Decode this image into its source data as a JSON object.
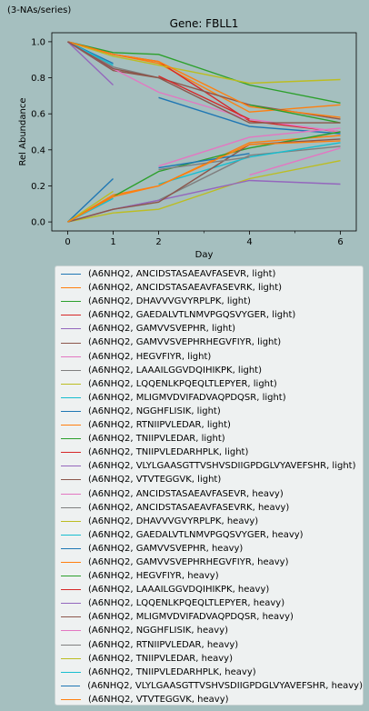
{
  "header_note": "(3-NAs/series)",
  "chart_data": {
    "type": "line",
    "title": "Gene: FBLL1",
    "xlabel": "Day",
    "ylabel": "Rel Abundance",
    "xlim": [
      -0.35,
      6.35
    ],
    "ylim": [
      -0.05,
      1.05
    ],
    "xticks": [
      0,
      1,
      2,
      4,
      6
    ],
    "yticks": [
      0.0,
      0.2,
      0.4,
      0.6,
      0.8,
      1.0
    ],
    "grid": false,
    "legend_position": "below",
    "series": [
      {
        "name": "(A6NHQ2, ANCIDSTASAEAVFASEVR, light)",
        "color": "#1f77b4",
        "points": [
          [
            0,
            1.0
          ],
          [
            1,
            0.88
          ]
        ]
      },
      {
        "name": "(A6NHQ2, ANCIDSTASAEAVFASEVRK, light)",
        "color": "#ff7f0e",
        "points": [
          [
            0,
            1.0
          ],
          [
            1,
            0.93
          ],
          [
            2,
            0.88
          ],
          [
            4,
            0.61
          ],
          [
            6,
            0.65
          ]
        ]
      },
      {
        "name": "(A6NHQ2, DHAVVVGVYRPLPK, light)",
        "color": "#2ca02c",
        "points": [
          [
            0,
            1.0
          ],
          [
            1,
            0.94
          ],
          [
            2,
            0.93
          ],
          [
            4,
            0.76
          ],
          [
            6,
            0.66
          ]
        ]
      },
      {
        "name": "(A6NHQ2, GAEDALVTLNMVPGQSVYGER, light)",
        "color": "#d62728",
        "points": [
          [
            0,
            1.0
          ],
          [
            1,
            0.93
          ],
          [
            2,
            0.89
          ],
          [
            4,
            0.56
          ],
          [
            6,
            0.5
          ]
        ]
      },
      {
        "name": "(A6NHQ2, GAMVVSVEPHR, light)",
        "color": "#9467bd",
        "points": [
          [
            0,
            1.0
          ],
          [
            1,
            0.76
          ]
        ]
      },
      {
        "name": "(A6NHQ2, GAMVVSVEPHRHEGVFIYR, light)",
        "color": "#8c564b",
        "points": [
          [
            0,
            1.0
          ],
          [
            1,
            0.84
          ],
          [
            2,
            0.8
          ],
          [
            4,
            0.65
          ],
          [
            6,
            0.57
          ]
        ]
      },
      {
        "name": "(A6NHQ2, HEGVFIYR, light)",
        "color": "#e377c2",
        "points": [
          [
            0,
            1.0
          ],
          [
            1,
            0.85
          ],
          [
            2,
            0.72
          ],
          [
            4,
            0.57
          ],
          [
            6,
            0.5
          ]
        ]
      },
      {
        "name": "(A6NHQ2, LAAAILGGVDQIHIKPK, light)",
        "color": "#7f7f7f",
        "points": [
          [
            0,
            1.0
          ],
          [
            1,
            0.86
          ],
          [
            2,
            0.8
          ]
        ]
      },
      {
        "name": "(A6NHQ2, LQQENLKPQEQLTLEPYER, light)",
        "color": "#bcbd22",
        "points": [
          [
            0,
            1.0
          ],
          [
            1,
            0.92
          ],
          [
            2,
            0.87
          ],
          [
            4,
            0.77
          ],
          [
            6,
            0.79
          ]
        ]
      },
      {
        "name": "(A6NHQ2, MLIGMVDVIFADVAQPDQSR, light)",
        "color": "#17becf",
        "points": [
          [
            0,
            1.0
          ],
          [
            1,
            0.87
          ]
        ]
      },
      {
        "name": "(A6NHQ2, NGGHFLISIK, light)",
        "color": "#1f77b4",
        "points": [
          [
            2,
            0.69
          ],
          [
            4,
            0.53
          ],
          [
            6,
            0.49
          ]
        ]
      },
      {
        "name": "(A6NHQ2, RTNIIPVLEDAR, light)",
        "color": "#ff7f0e",
        "points": [
          [
            0,
            1.0
          ],
          [
            1,
            0.93
          ],
          [
            2,
            0.89
          ],
          [
            4,
            0.64
          ],
          [
            6,
            0.58
          ]
        ]
      },
      {
        "name": "(A6NHQ2, TNIIPVLEDAR, light)",
        "color": "#2ca02c",
        "points": [
          [
            4,
            0.65
          ],
          [
            6,
            0.55
          ]
        ]
      },
      {
        "name": "(A6NHQ2, TNIIPVLEDARHPLK, light)",
        "color": "#d62728",
        "points": [
          [
            2,
            0.81
          ],
          [
            4,
            0.57
          ]
        ]
      },
      {
        "name": "(A6NHQ2, VLYLGAASGTTVSHVSDIIGPDGLVYAVEFSHR, light)",
        "color": "#9467bd",
        "points": [
          [
            0,
            1.0
          ],
          [
            1,
            0.85
          ]
        ]
      },
      {
        "name": "(A6NHQ2, VTVTEGGVK, light)",
        "color": "#8c564b",
        "points": [
          [
            0,
            1.0
          ],
          [
            1,
            0.85
          ],
          [
            2,
            0.8
          ],
          [
            4,
            0.55
          ],
          [
            6,
            0.55
          ]
        ]
      },
      {
        "name": "(A6NHQ2, ANCIDSTASAEAVFASEVR, heavy)",
        "color": "#e377c2",
        "points": [
          [
            2,
            0.31
          ],
          [
            4,
            0.47
          ],
          [
            6,
            0.52
          ]
        ]
      },
      {
        "name": "(A6NHQ2, ANCIDSTASAEAVFASEVRK, heavy)",
        "color": "#7f7f7f",
        "points": [
          [
            0,
            0.0
          ],
          [
            1,
            0.07
          ],
          [
            2,
            0.12
          ],
          [
            4,
            0.37
          ],
          [
            6,
            0.42
          ]
        ]
      },
      {
        "name": "(A6NHQ2, DHAVVVGVYRPLPK, heavy)",
        "color": "#bcbd22",
        "points": [
          [
            0,
            0.0
          ],
          [
            1,
            0.05
          ],
          [
            2,
            0.07
          ],
          [
            4,
            0.24
          ],
          [
            6,
            0.34
          ]
        ]
      },
      {
        "name": "(A6NHQ2, GAEDALVTLNMVPGQSVYGER, heavy)",
        "color": "#17becf",
        "points": [
          [
            2,
            0.21
          ],
          [
            4,
            0.36
          ],
          [
            6,
            0.44
          ]
        ]
      },
      {
        "name": "(A6NHQ2, GAMVVSVEPHR, heavy)",
        "color": "#1f77b4",
        "points": [
          [
            0,
            0.0
          ],
          [
            1,
            0.24
          ]
        ]
      },
      {
        "name": "(A6NHQ2, GAMVVSVEPHRHEGVFIYR, heavy)",
        "color": "#ff7f0e",
        "points": [
          [
            0,
            0.0
          ],
          [
            1,
            0.15
          ],
          [
            2,
            0.2
          ],
          [
            4,
            0.44
          ],
          [
            6,
            0.48
          ]
        ]
      },
      {
        "name": "(A6NHQ2, HEGVFIYR, heavy)",
        "color": "#2ca02c",
        "points": [
          [
            0,
            0.0
          ],
          [
            1,
            0.14
          ],
          [
            2,
            0.28
          ],
          [
            4,
            0.41
          ],
          [
            6,
            0.5
          ]
        ]
      },
      {
        "name": "(A6NHQ2, LAAAILGGVDQIHIKPK, heavy)",
        "color": "#d62728",
        "points": [
          [
            0,
            0.0
          ],
          [
            1,
            0.14
          ]
        ]
      },
      {
        "name": "(A6NHQ2, LQQENLKPQEQLTLEPYER, heavy)",
        "color": "#9467bd",
        "points": [
          [
            0,
            0.0
          ],
          [
            1,
            0.07
          ],
          [
            2,
            0.12
          ],
          [
            4,
            0.23
          ],
          [
            6,
            0.21
          ]
        ]
      },
      {
        "name": "(A6NHQ2, MLIGMVDVIFADVAQPDQSR, heavy)",
        "color": "#8c564b",
        "points": [
          [
            0,
            0.0
          ],
          [
            1,
            0.07
          ],
          [
            2,
            0.11
          ],
          [
            4,
            0.43
          ],
          [
            6,
            0.46
          ]
        ]
      },
      {
        "name": "(A6NHQ2, NGGHFLISIK, heavy)",
        "color": "#e377c2",
        "points": [
          [
            4,
            0.26
          ],
          [
            6,
            0.41
          ]
        ]
      },
      {
        "name": "(A6NHQ2, RTNIIPVLEDAR, heavy)",
        "color": "#7f7f7f",
        "points": [
          [
            2,
            0.29
          ],
          [
            4,
            0.36
          ]
        ]
      },
      {
        "name": "(A6NHQ2, TNIIPVLEDAR, heavy)",
        "color": "#bcbd22",
        "points": [
          [
            0,
            0.0
          ],
          [
            1,
            0.17
          ]
        ]
      },
      {
        "name": "(A6NHQ2, TNIIPVLEDARHPLK, heavy)",
        "color": "#17becf",
        "points": [
          [
            0,
            0.0
          ],
          [
            1,
            0.13
          ]
        ]
      },
      {
        "name": "(A6NHQ2, VLYLGAASGTTVSHVSDIIGPDGLVYAVEFSHR, heavy)",
        "color": "#1f77b4",
        "points": [
          [
            2,
            0.3
          ],
          [
            4,
            0.38
          ]
        ]
      },
      {
        "name": "(A6NHQ2, VTVTEGGVK, heavy)",
        "color": "#ff7f0e",
        "points": [
          [
            0,
            0.0
          ],
          [
            1,
            0.14
          ],
          [
            2,
            0.2
          ],
          [
            4,
            0.43
          ],
          [
            6,
            0.45
          ]
        ]
      }
    ]
  }
}
